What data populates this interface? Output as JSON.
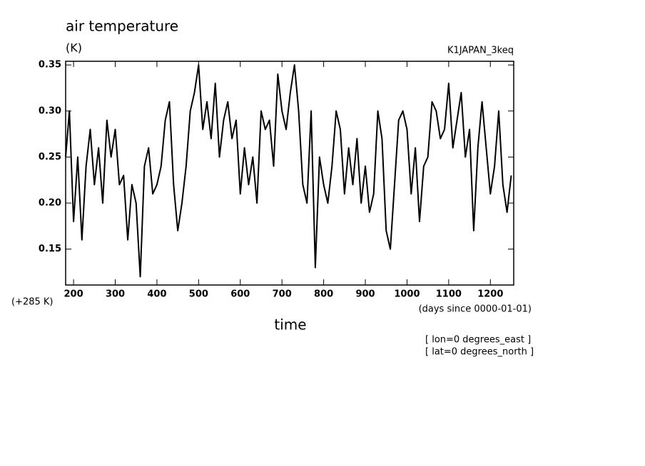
{
  "chart_data": {
    "type": "line",
    "title": "air temperature",
    "y_label": "(K)",
    "subtitle": "K1JAPAN_3keq",
    "y_offset_label": "(+285 K)",
    "x_units": "(days since 0000-01-01)",
    "x_label": "time",
    "annotations": [
      "[ lon=0 degrees_east ]",
      "[ lat=0 degrees_north ]"
    ],
    "x": [
      181,
      190,
      200,
      210,
      220,
      230,
      240,
      250,
      260,
      270,
      280,
      290,
      300,
      310,
      320,
      330,
      340,
      350,
      360,
      370,
      380,
      390,
      400,
      410,
      420,
      430,
      440,
      450,
      460,
      470,
      480,
      490,
      500,
      510,
      520,
      530,
      540,
      550,
      560,
      570,
      580,
      590,
      600,
      610,
      620,
      630,
      640,
      650,
      660,
      670,
      680,
      690,
      700,
      710,
      720,
      730,
      740,
      750,
      760,
      770,
      780,
      790,
      800,
      810,
      820,
      830,
      840,
      850,
      860,
      870,
      880,
      890,
      900,
      910,
      920,
      930,
      940,
      950,
      960,
      970,
      980,
      990,
      1000,
      1010,
      1020,
      1030,
      1040,
      1050,
      1060,
      1070,
      1080,
      1090,
      1100,
      1110,
      1120,
      1130,
      1140,
      1150,
      1160,
      1170,
      1180,
      1190,
      1200,
      1210,
      1220,
      1230,
      1240,
      1250
    ],
    "series": [
      {
        "color": "#000000",
        "values": [
          0.25,
          0.3,
          0.18,
          0.25,
          0.16,
          0.24,
          0.28,
          0.22,
          0.26,
          0.2,
          0.29,
          0.25,
          0.28,
          0.22,
          0.23,
          0.16,
          0.22,
          0.2,
          0.12,
          0.24,
          0.26,
          0.21,
          0.22,
          0.24,
          0.29,
          0.31,
          0.22,
          0.17,
          0.2,
          0.24,
          0.3,
          0.32,
          0.35,
          0.28,
          0.31,
          0.27,
          0.33,
          0.25,
          0.29,
          0.31,
          0.27,
          0.29,
          0.21,
          0.26,
          0.22,
          0.25,
          0.2,
          0.3,
          0.28,
          0.29,
          0.24,
          0.34,
          0.3,
          0.28,
          0.32,
          0.35,
          0.3,
          0.22,
          0.2,
          0.3,
          0.13,
          0.25,
          0.22,
          0.2,
          0.24,
          0.3,
          0.28,
          0.21,
          0.26,
          0.22,
          0.27,
          0.2,
          0.24,
          0.19,
          0.21,
          0.3,
          0.27,
          0.17,
          0.15,
          0.22,
          0.29,
          0.3,
          0.28,
          0.21,
          0.26,
          0.18,
          0.24,
          0.25,
          0.31,
          0.3,
          0.27,
          0.28,
          0.33,
          0.26,
          0.29,
          0.32,
          0.25,
          0.28,
          0.17,
          0.26,
          0.31,
          0.26,
          0.21,
          0.24,
          0.3,
          0.22,
          0.19,
          0.23
        ]
      }
    ],
    "xlim": [
      181,
      1256
    ],
    "xticks": [
      200,
      300,
      400,
      500,
      600,
      700,
      800,
      900,
      1000,
      1100,
      1200
    ],
    "ylim": [
      0.111,
      0.354
    ],
    "yticks": [
      0.15,
      {
        "value": 0.2,
        "label": "0.20"
      },
      0.25,
      {
        "value": 0.3,
        "label": "0.30"
      },
      0.35
    ]
  }
}
